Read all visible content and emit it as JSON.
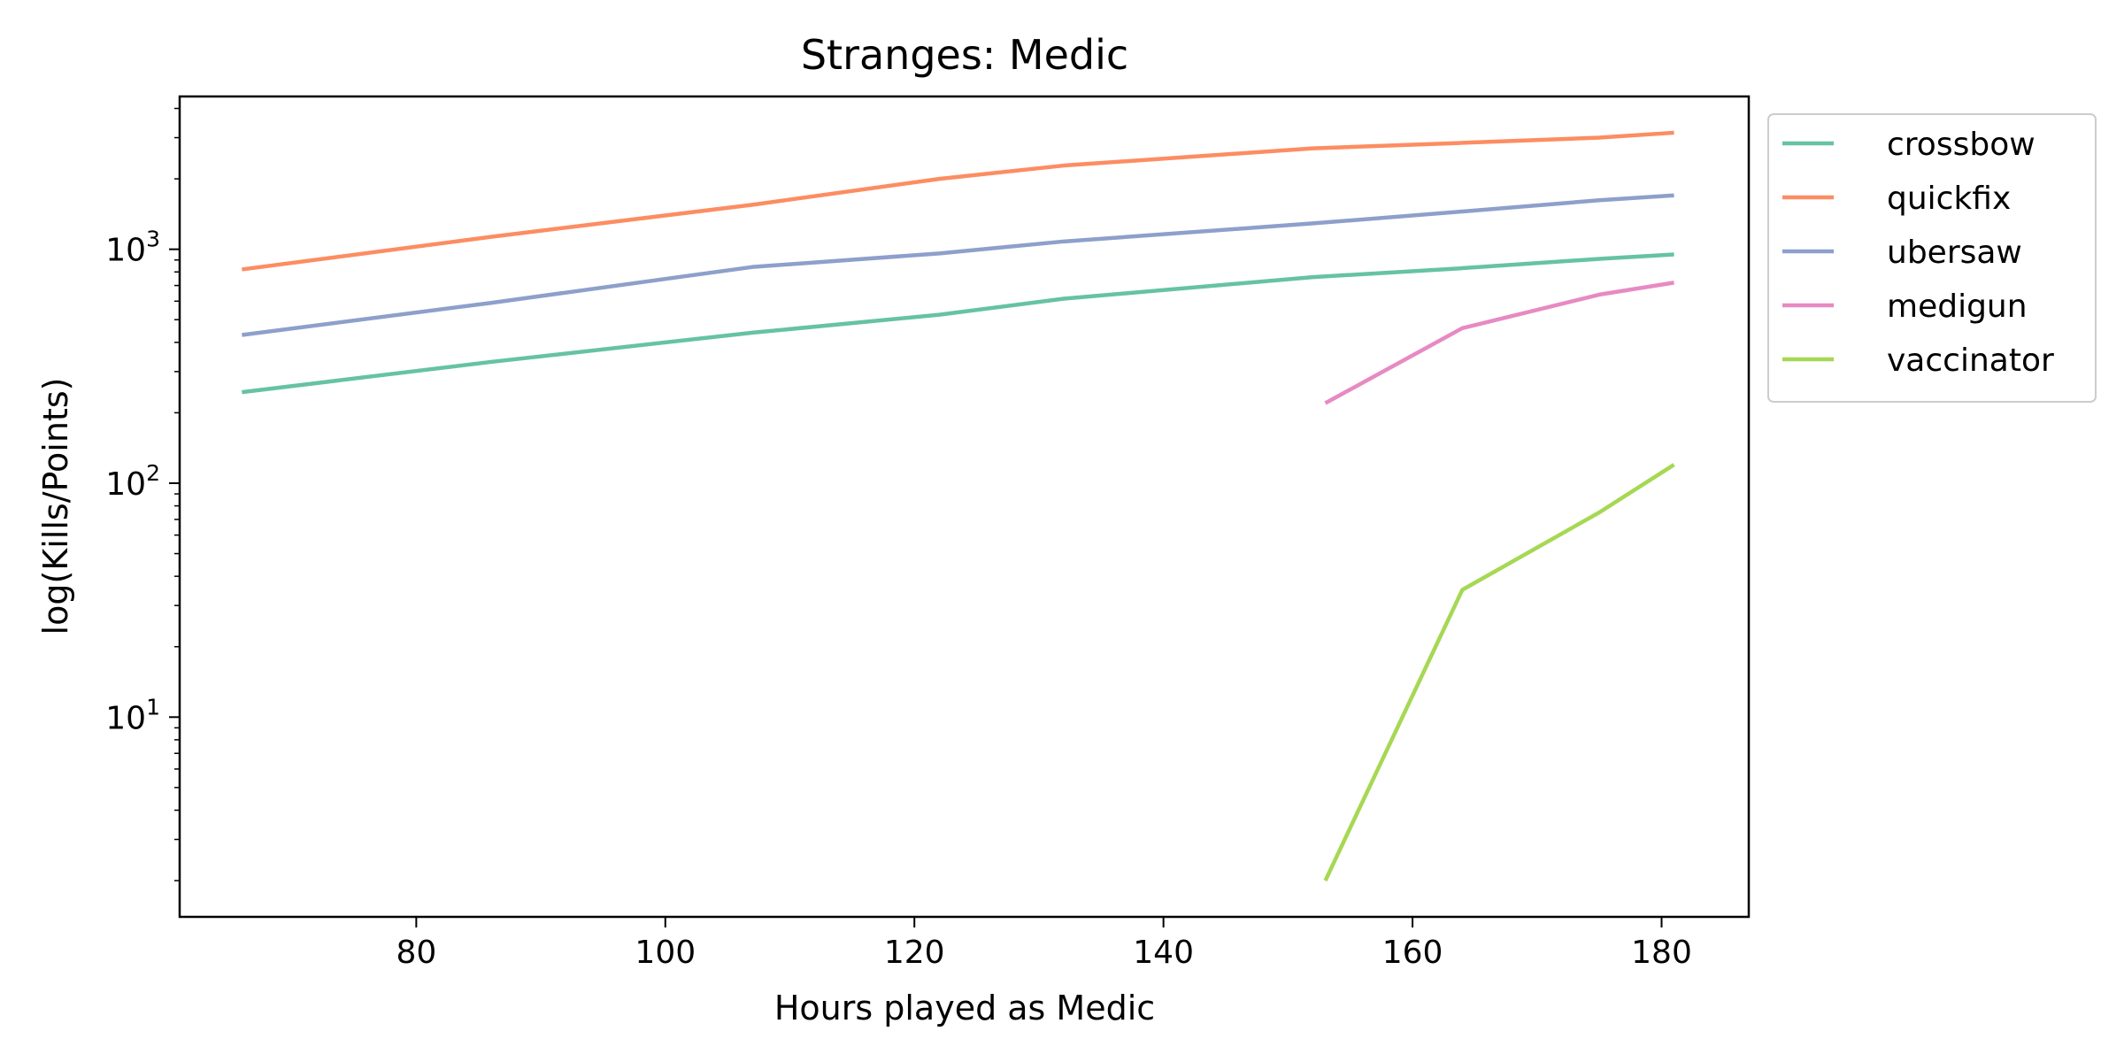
{
  "chart_data": {
    "type": "line",
    "title": "Stranges: Medic",
    "xlabel": "Hours played as Medic",
    "ylabel": "log(Kills/Points)",
    "yscale": "log",
    "xlim": [
      61,
      187
    ],
    "ylim": [
      1.4,
      4500
    ],
    "grid": false,
    "legend_position": "outside-top-right",
    "x_ticks": [
      {
        "value": 80,
        "label": "80"
      },
      {
        "value": 100,
        "label": "100"
      },
      {
        "value": 120,
        "label": "120"
      },
      {
        "value": 140,
        "label": "140"
      },
      {
        "value": 160,
        "label": "160"
      },
      {
        "value": 180,
        "label": "180"
      }
    ],
    "y_ticks": [
      {
        "value": 10,
        "base": "10",
        "exp": "1"
      },
      {
        "value": 100,
        "base": "10",
        "exp": "2"
      },
      {
        "value": 1000,
        "base": "10",
        "exp": "3"
      }
    ],
    "series": [
      {
        "name": "crossbow",
        "color": "#66c2a5",
        "x": [
          66,
          86,
          107,
          122,
          132,
          152,
          164,
          175,
          181
        ],
        "y": [
          245,
          330,
          440,
          525,
          615,
          760,
          830,
          910,
          950
        ]
      },
      {
        "name": "quickfix",
        "color": "#fc8d62",
        "x": [
          66,
          86,
          107,
          122,
          132,
          152,
          164,
          175,
          181
        ],
        "y": [
          820,
          1130,
          1550,
          2000,
          2280,
          2700,
          2850,
          3000,
          3150
        ]
      },
      {
        "name": "ubersaw",
        "color": "#8da0cb",
        "x": [
          66,
          86,
          107,
          122,
          132,
          152,
          164,
          175,
          181
        ],
        "y": [
          430,
          590,
          840,
          960,
          1080,
          1290,
          1450,
          1620,
          1700
        ]
      },
      {
        "name": "medigun",
        "color": "#e78ac3",
        "x": [
          153,
          164,
          175,
          181
        ],
        "y": [
          220,
          460,
          640,
          720
        ]
      },
      {
        "name": "vaccinator",
        "color": "#a6d854",
        "x": [
          153,
          164,
          175,
          181
        ],
        "y": [
          2,
          35,
          75,
          120
        ]
      }
    ]
  }
}
